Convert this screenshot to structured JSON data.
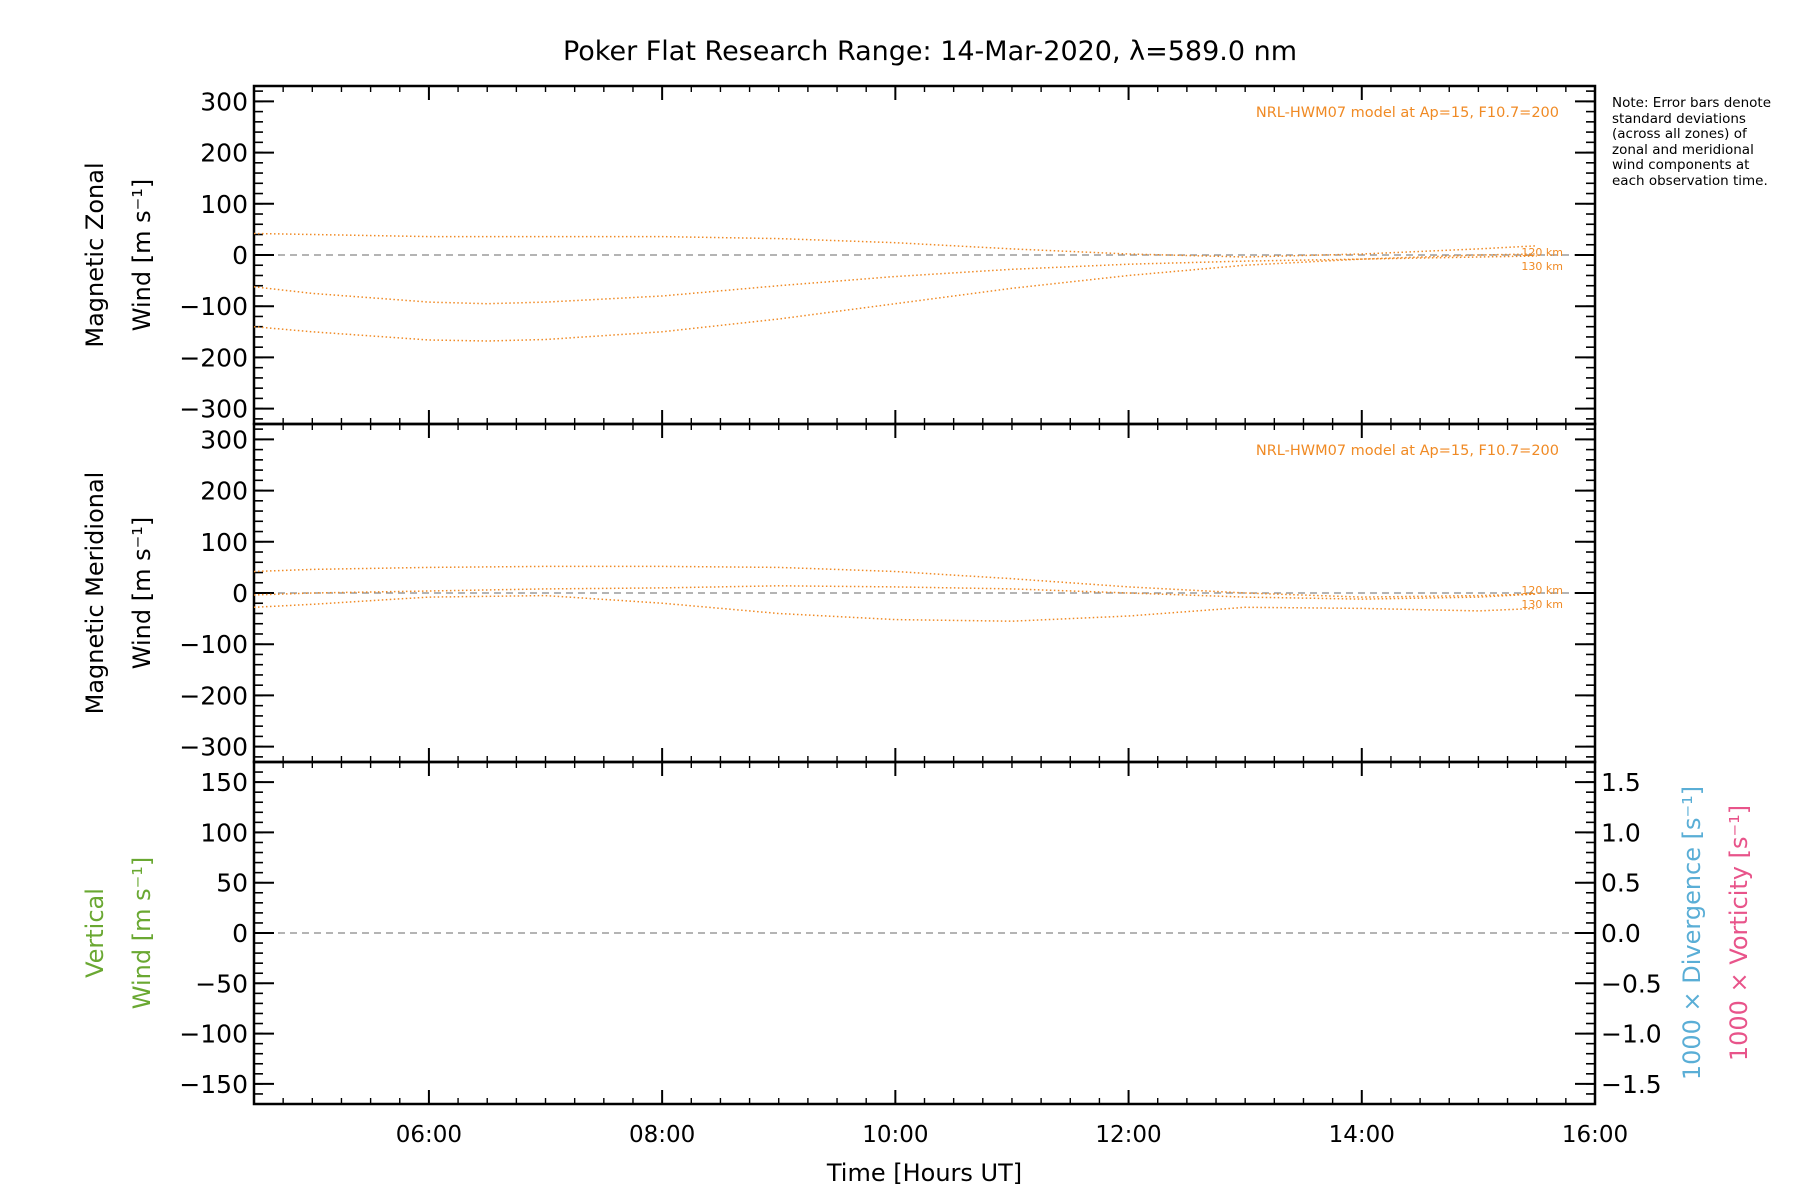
{
  "title": "Poker Flat Research Range: 14-Mar-2020, λ=589.0 nm",
  "note": "Note: Error bars denote standard deviations (across all zones) of zonal and meridional wind components at each observation time.",
  "colors": {
    "model": "#f08a24",
    "vertical": "#6aa832",
    "divergence": "#5aaed6",
    "vorticity": "#e8548a",
    "zero_line": "#888888",
    "axis": "#000000"
  },
  "chart_data": [
    {
      "type": "line",
      "panel": "zonal",
      "ylabel_line1": "Magnetic Zonal",
      "ylabel_line2": "Wind [m s⁻¹]",
      "ylim": [
        -330,
        330
      ],
      "yticks": [
        300,
        200,
        100,
        0,
        -100,
        -200,
        -300
      ],
      "ytick_labels": [
        "300",
        "200",
        "100",
        "0",
        "−100",
        "−200",
        "−300"
      ],
      "xlim": [
        4.5,
        16.0
      ],
      "annotation": "NRL-HWM07 model at Ap=15, F10.7=200",
      "end_labels": [
        "120 km",
        "130 km"
      ],
      "series": [
        {
          "x": [
            4.5,
            5,
            6,
            7,
            8,
            9,
            10,
            11,
            12,
            13,
            14,
            15,
            15.5
          ],
          "y": [
            42,
            40,
            36,
            36,
            36,
            32,
            24,
            12,
            2,
            -4,
            2,
            12,
            18
          ]
        },
        {
          "x": [
            4.5,
            5,
            6,
            6.5,
            7,
            8,
            9,
            10,
            11,
            12,
            13,
            14,
            15,
            15.5
          ],
          "y": [
            -62,
            -75,
            -92,
            -95,
            -92,
            -80,
            -60,
            -42,
            -28,
            -18,
            -12,
            -8,
            -4,
            -2
          ]
        },
        {
          "x": [
            4.5,
            5,
            6,
            6.5,
            7,
            8,
            9,
            10,
            11,
            12,
            13,
            14,
            15,
            15.5
          ],
          "y": [
            -140,
            -150,
            -166,
            -168,
            -165,
            -150,
            -125,
            -95,
            -65,
            -40,
            -20,
            -8,
            0,
            2
          ]
        }
      ]
    },
    {
      "type": "line",
      "panel": "meridional",
      "ylabel_line1": "Magnetic Meridional",
      "ylabel_line2": "Wind [m s⁻¹]",
      "ylim": [
        -330,
        330
      ],
      "yticks": [
        300,
        200,
        100,
        0,
        -100,
        -200,
        -300
      ],
      "ytick_labels": [
        "300",
        "200",
        "100",
        "0",
        "−100",
        "−200",
        "−300"
      ],
      "xlim": [
        4.5,
        16.0
      ],
      "annotation": "NRL-HWM07 model at Ap=15, F10.7=200",
      "end_labels": [
        "120 km",
        "130 km"
      ],
      "series": [
        {
          "x": [
            4.5,
            5,
            6,
            7,
            8,
            9,
            10,
            11,
            12,
            13,
            14,
            15,
            15.5
          ],
          "y": [
            42,
            46,
            50,
            52,
            52,
            50,
            42,
            28,
            12,
            0,
            -8,
            -5,
            -2
          ]
        },
        {
          "x": [
            4.5,
            5,
            6,
            7,
            8,
            9,
            10,
            11,
            12,
            13,
            14,
            15,
            15.5
          ],
          "y": [
            -4,
            0,
            4,
            8,
            10,
            14,
            12,
            8,
            0,
            -8,
            -12,
            -8,
            -2
          ]
        },
        {
          "x": [
            4.5,
            5,
            6,
            7,
            8,
            9,
            10,
            11,
            12,
            13,
            14,
            15,
            15.5
          ],
          "y": [
            -28,
            -22,
            -8,
            -5,
            -20,
            -40,
            -52,
            -55,
            -45,
            -28,
            -30,
            -35,
            -30
          ]
        }
      ]
    },
    {
      "type": "line",
      "panel": "vertical",
      "ylabel_line1": "Vertical",
      "ylabel_line2": "Wind [m s⁻¹]",
      "ylim": [
        -170,
        170
      ],
      "yticks": [
        150,
        100,
        50,
        0,
        -50,
        -100,
        -150
      ],
      "ytick_labels": [
        "150",
        "100",
        "50",
        "0",
        "−50",
        "−100",
        "−150"
      ],
      "xlim": [
        4.5,
        16.0
      ],
      "xticks": [
        6,
        8,
        10,
        12,
        14,
        16
      ],
      "xtick_labels": [
        "06:00",
        "08:00",
        "10:00",
        "12:00",
        "14:00",
        "16:00"
      ],
      "xlabel": "Time [Hours UT]",
      "y2lim": [
        -1.7,
        1.7
      ],
      "y2ticks": [
        1.5,
        1.0,
        0.5,
        0.0,
        -0.5,
        -1.0,
        -1.5
      ],
      "y2tick_labels": [
        "1.5",
        "1.0",
        "0.5",
        "0.0",
        "−0.5",
        "−1.0",
        "−1.5"
      ],
      "y2label_divergence": "1000 × Divergence [s⁻¹]",
      "y2label_vorticity": "1000 × Vorticity [s⁻¹]",
      "series": []
    }
  ]
}
